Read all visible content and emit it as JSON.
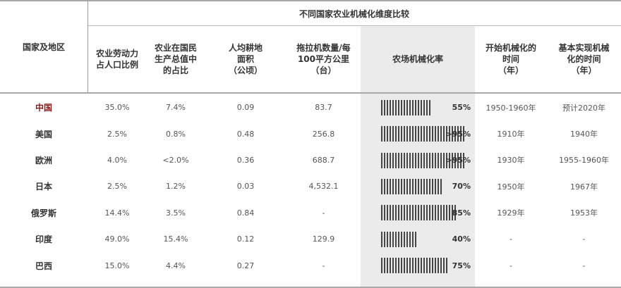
{
  "table": {
    "group_title": "不同国家农业机械化维度比较",
    "region_header": "国家及地区",
    "columns": [
      "农业劳动力\n占人口比例",
      "农业在国民\n生产总值中\n的占比",
      "人均耕地\n面积\n（公顷）",
      "拖拉机数量/每\n100平方公里\n（台）",
      "农场机械化率",
      "开始机械化的\n时间\n（年）",
      "基本实现机械\n化的时间\n（年）"
    ],
    "rows": [
      {
        "region": "中国",
        "labor": "35.0%",
        "gdp": "7.4%",
        "land": "0.09",
        "tractors": "83.7",
        "mech_rate": 0.55,
        "mech_label": "55%",
        "start": "1950-1960年",
        "done": "预计2020年"
      },
      {
        "region": "美国",
        "labor": "2.5%",
        "gdp": "0.8%",
        "land": "0.48",
        "tractors": "256.8",
        "mech_rate": 0.95,
        "mech_label": ">95%",
        "start": "1910年",
        "done": "1940年"
      },
      {
        "region": "欧洲",
        "labor": "4.0%",
        "gdp": "<2.0%",
        "land": "0.36",
        "tractors": "688.7",
        "mech_rate": 0.95,
        "mech_label": ">95%",
        "start": "1930年",
        "done": "1955-1960年"
      },
      {
        "region": "日本",
        "labor": "2.5%",
        "gdp": "1.2%",
        "land": "0.03",
        "tractors": "4,532.1",
        "mech_rate": 0.7,
        "mech_label": "70%",
        "start": "1950年",
        "done": "1967年"
      },
      {
        "region": "俄罗斯",
        "labor": "14.4%",
        "gdp": "3.5%",
        "land": "0.84",
        "tractors": "-",
        "mech_rate": 0.85,
        "mech_label": "85%",
        "start": "1929年",
        "done": "1953年"
      },
      {
        "region": "印度",
        "labor": "49.0%",
        "gdp": "15.4%",
        "land": "0.12",
        "tractors": "129.9",
        "mech_rate": 0.4,
        "mech_label": "40%",
        "start": "-",
        "done": "-"
      },
      {
        "region": "巴西",
        "labor": "15.0%",
        "gdp": "4.4%",
        "land": "0.27",
        "tractors": "-",
        "mech_rate": 0.75,
        "mech_label": "75%",
        "start": "-",
        "done": "-"
      }
    ]
  }
}
